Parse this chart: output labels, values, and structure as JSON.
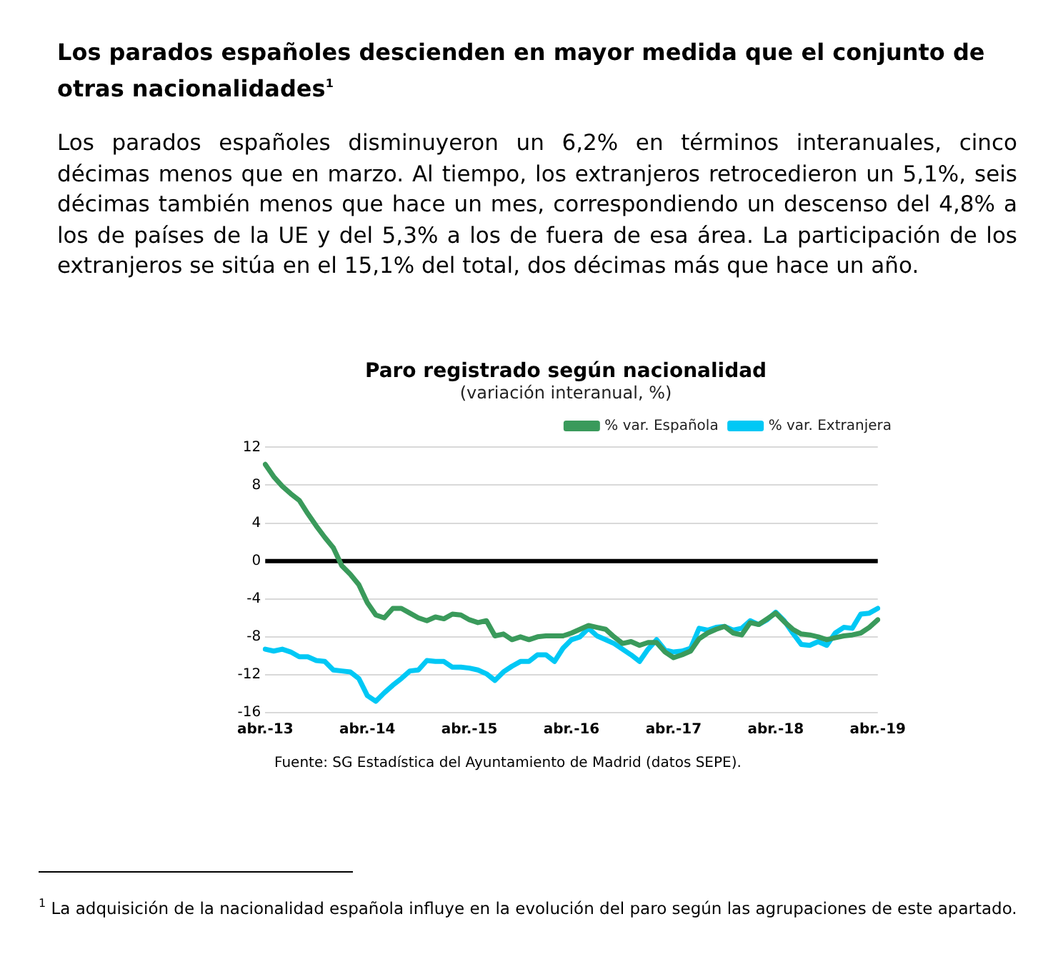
{
  "chart_data": {
    "type": "line",
    "title": "Paro registrado según nacionalidad",
    "subtitle": "(variación interanual, %)",
    "annotations": [
      "Los parados españoles descienden en mayor medida que el conjunto de otras nacionalidades$^{1}$",
      "Los parados españoles disminuyeron un 6,2% en términos interanuales, cinco décimas menos que en marzo. Al tiempo, los extranjeros retrocedieron un 5,1%, seis décimas también menos que hace un mes, correspondiendo un descenso del 4,8% a los de países de la UE y del 5,3% a los de fuera de esa área. La participación de los extranjeros se sitúa en el 15,1% del total, dos décimas más que hace un año.",
      "Fuente: SG Estadística del Ayuntamiento de Madrid (datos SEPE).",
      "$^{1}$ La adquisición de la nacionalidad española influye en la evolución del paro según las agrupaciones de este apartado."
    ],
    "categories": [
      "abr.-13",
      null,
      null,
      null,
      null,
      null,
      null,
      null,
      null,
      null,
      null,
      null,
      "abr.-14",
      null,
      null,
      null,
      null,
      null,
      null,
      null,
      null,
      null,
      null,
      null,
      "abr.-15",
      null,
      null,
      null,
      null,
      null,
      null,
      null,
      null,
      null,
      null,
      null,
      "abr.-16",
      null,
      null,
      null,
      null,
      null,
      null,
      null,
      null,
      null,
      null,
      null,
      "abr.-17",
      null,
      null,
      null,
      null,
      null,
      null,
      null,
      null,
      null,
      null,
      null,
      "abr.-18",
      null,
      null,
      null,
      null,
      null,
      null,
      null,
      null,
      null,
      null,
      null,
      "abr.-19"
    ],
    "series": [
      {
        "name": "% var. Española",
        "color": "#3a9a5b",
        "values": [
          10.2,
          8.9,
          7.9,
          7.1,
          6.4,
          5.0,
          3.7,
          2.5,
          1.4,
          -0.5,
          -1.4,
          -2.5,
          -4.4,
          -5.7,
          -6.0,
          -5.0,
          -5.0,
          -5.5,
          -6.0,
          -6.3,
          -5.9,
          -6.1,
          -5.6,
          -5.7,
          -6.2,
          -6.5,
          -6.3,
          -7.9,
          -7.7,
          -8.3,
          -8.0,
          -8.3,
          -8.0,
          -7.9,
          -7.9,
          -7.9,
          -7.6,
          -7.2,
          -6.8,
          -7.0,
          -7.2,
          -8.0,
          -8.7,
          -8.5,
          -8.9,
          -8.6,
          -8.6,
          -9.6,
          -10.2,
          -9.9,
          -9.5,
          -8.2,
          -7.6,
          -7.2,
          -6.9,
          -7.6,
          -7.8,
          -6.5,
          -6.7,
          -6.1,
          -5.5,
          -6.4,
          -7.2,
          -7.7,
          -7.8,
          -8.0,
          -8.3,
          -8.1,
          -7.9,
          -7.8,
          -7.6,
          -7.0,
          -6.2
        ]
      },
      {
        "name": "% var. Extranjera",
        "color": "#00c8f5",
        "values": [
          -9.3,
          -9.5,
          -9.3,
          -9.6,
          -10.1,
          -10.1,
          -10.5,
          -10.6,
          -11.5,
          -11.6,
          -11.7,
          -12.4,
          -14.2,
          -14.8,
          -13.9,
          -13.1,
          -12.4,
          -11.6,
          -11.5,
          -10.5,
          -10.6,
          -10.6,
          -11.2,
          -11.2,
          -11.3,
          -11.5,
          -11.9,
          -12.6,
          -11.7,
          -11.1,
          -10.6,
          -10.6,
          -9.9,
          -9.9,
          -10.6,
          -9.2,
          -8.3,
          -8.0,
          -7.1,
          -7.9,
          -8.3,
          -8.7,
          -9.3,
          -9.9,
          -10.6,
          -9.3,
          -8.3,
          -9.4,
          -9.6,
          -9.5,
          -9.2,
          -7.1,
          -7.3,
          -7.0,
          -6.9,
          -7.3,
          -7.1,
          -6.3,
          -6.7,
          -6.2,
          -5.4,
          -6.3,
          -7.6,
          -8.8,
          -8.9,
          -8.5,
          -8.9,
          -7.6,
          -7.0,
          -7.1,
          -5.6,
          -5.5,
          -5.0
        ]
      }
    ],
    "ylim": [
      -16,
      12
    ],
    "yticks": [
      -16,
      -12,
      -8,
      -4,
      0,
      4,
      8,
      12
    ],
    "ref_lines": [
      {
        "axis": "y",
        "value": 0,
        "color": "#000000"
      }
    ],
    "grid": "y",
    "legend": "top right",
    "marker": "none",
    "line_style": "solid"
  }
}
